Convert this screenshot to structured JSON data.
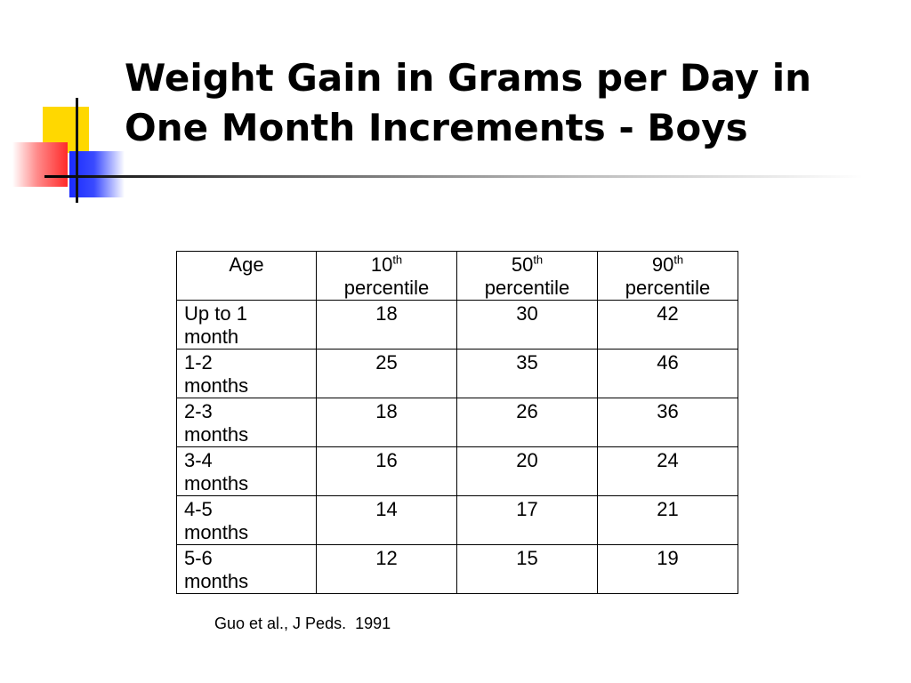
{
  "slide": {
    "title_line1": "Weight Gain in Grams per Day in",
    "title_line2": "One Month Increments - Boys",
    "source": "Guo et al., J Peds.  1991"
  },
  "table": {
    "headers": [
      {
        "main": "Age",
        "sup": "",
        "sub": ""
      },
      {
        "main": "10",
        "sup": "th",
        "sub": "percentile"
      },
      {
        "main": "50",
        "sup": "th",
        "sub": "percentile"
      },
      {
        "main": "90",
        "sup": "th",
        "sub": "percentile"
      }
    ],
    "rows": [
      {
        "age_line1": "Up to 1",
        "age_line2": "month",
        "p10": "18",
        "p50": "30",
        "p90": "42"
      },
      {
        "age_line1": "1-2",
        "age_line2": "months",
        "p10": "25",
        "p50": "35",
        "p90": "46"
      },
      {
        "age_line1": "2-3",
        "age_line2": "months",
        "p10": "18",
        "p50": "26",
        "p90": "36"
      },
      {
        "age_line1": "3-4",
        "age_line2": "months",
        "p10": "16",
        "p50": "20",
        "p90": "24"
      },
      {
        "age_line1": "4-5",
        "age_line2": "months",
        "p10": "14",
        "p50": "17",
        "p90": "21"
      },
      {
        "age_line1": "5-6",
        "age_line2": "months",
        "p10": "12",
        "p50": "15",
        "p90": "19"
      }
    ]
  },
  "colors": {
    "accent_yellow": "#ffd800",
    "accent_red": "#ff2a2a",
    "accent_blue": "#1a2bff"
  }
}
